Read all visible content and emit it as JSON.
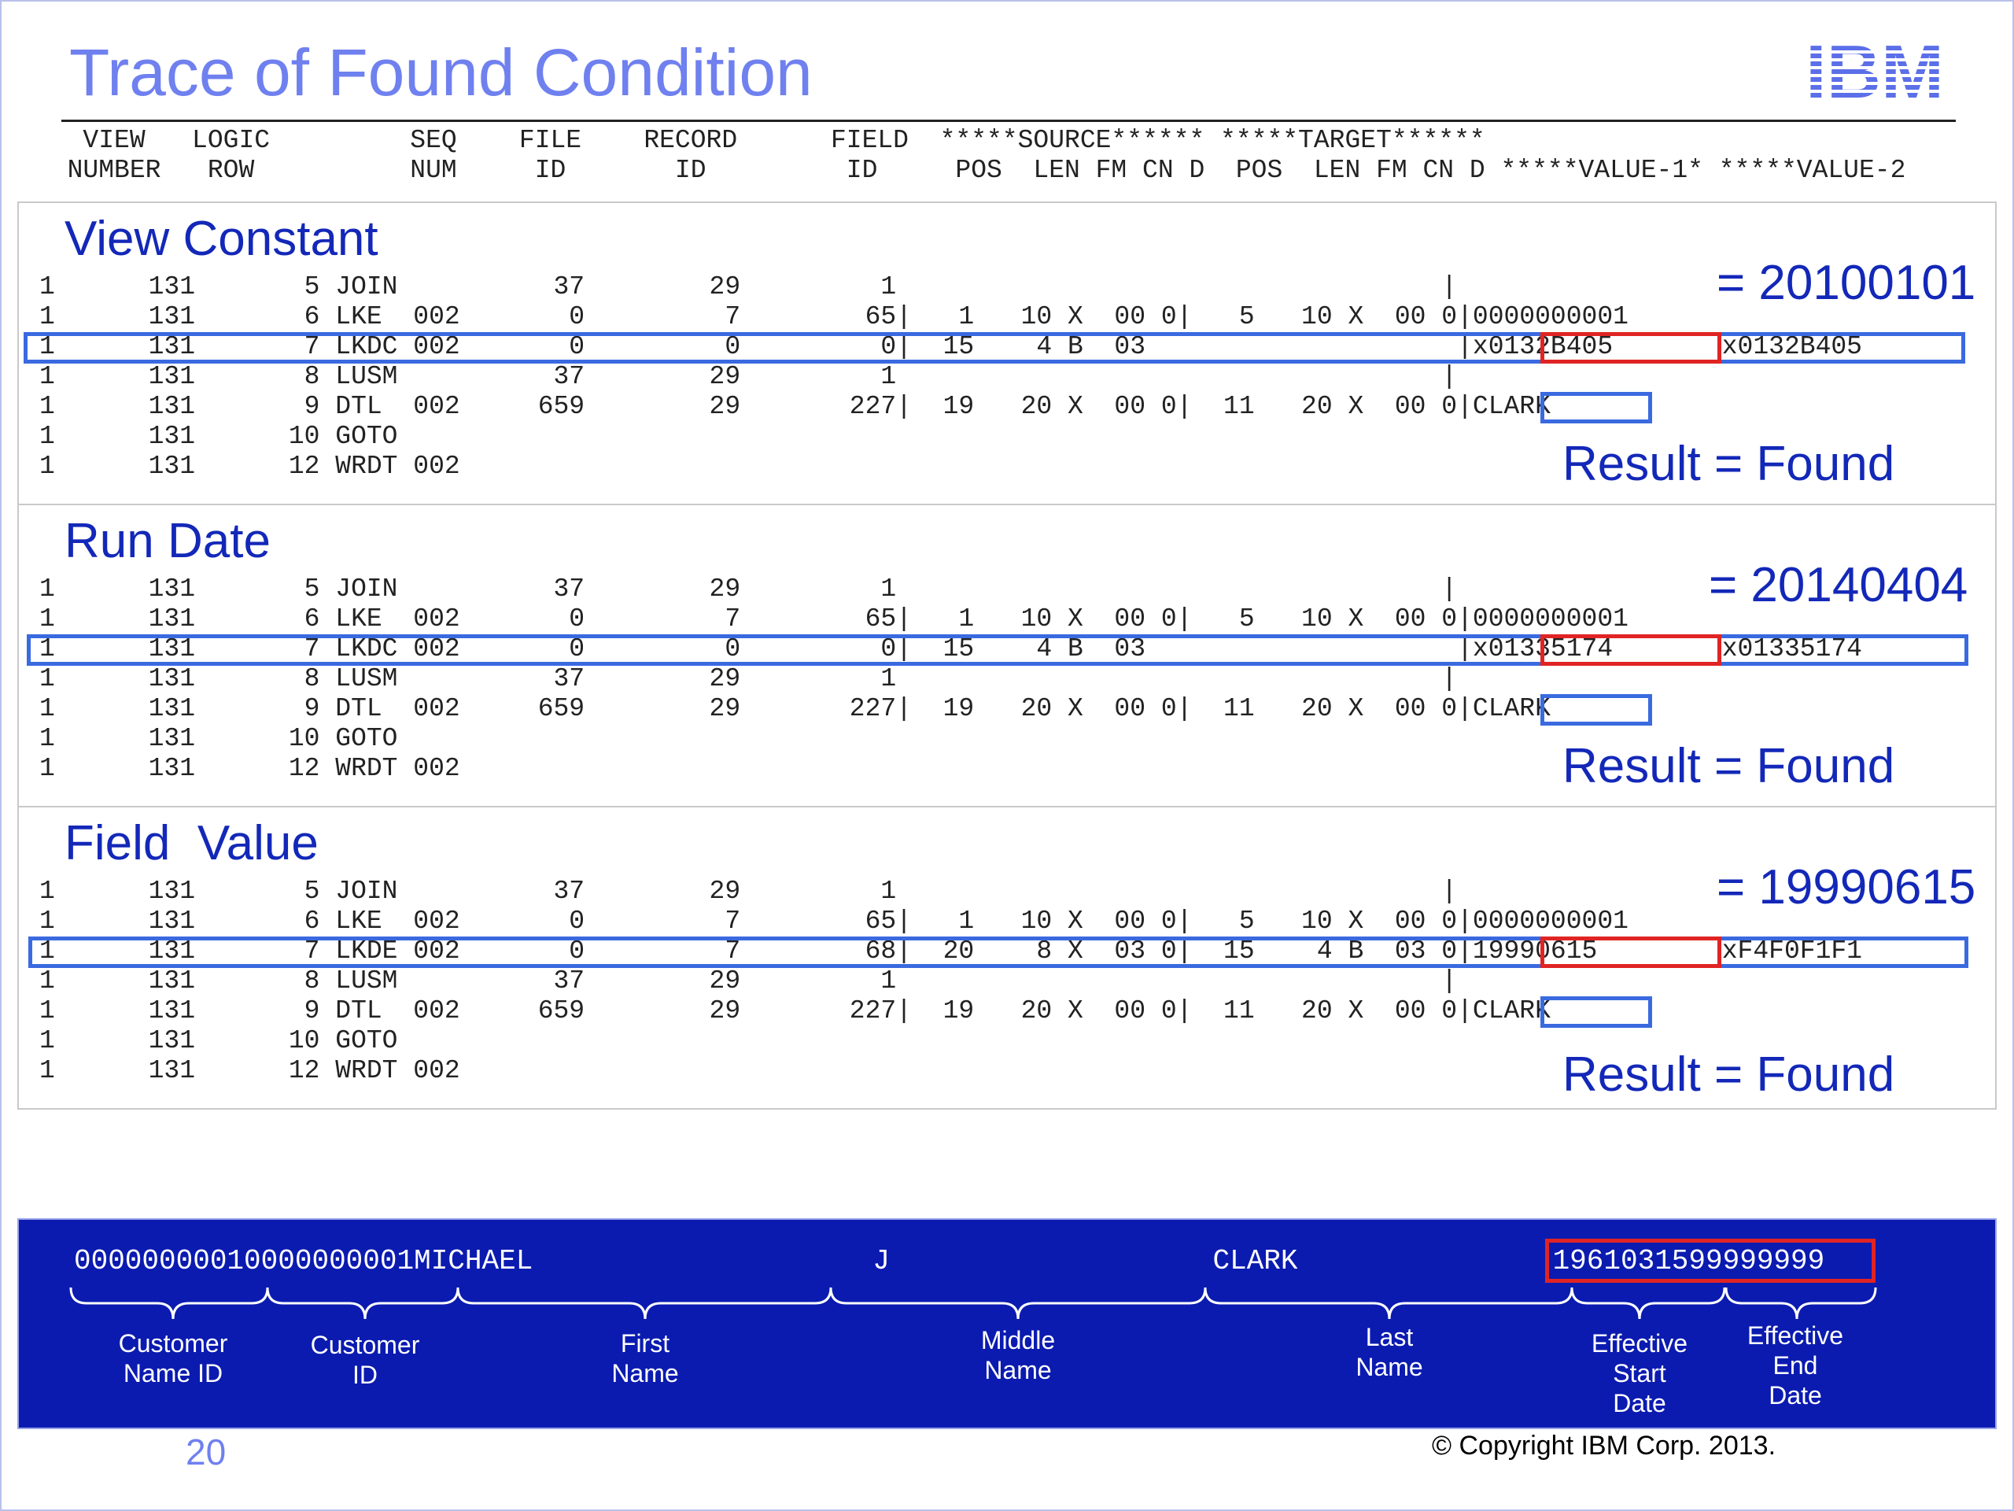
{
  "slide": {
    "title": "Trace of Found Condition",
    "logo_text": "IBM",
    "page_number": "20",
    "copyright": "© Copyright IBM Corp. 2013."
  },
  "header": {
    "line1": "   VIEW   LOGIC         SEQ    FILE    RECORD      FIELD  *****SOURCE****** *****TARGET******",
    "line2": "  NUMBER   ROW          NUM     ID       ID         ID     POS  LEN FM CN D  POS  LEN FM CN D *****VALUE-1* *****VALUE-2"
  },
  "panels": [
    {
      "title": "View Constant",
      "callout_value": "= 20100101",
      "result": "Result = Found",
      "rows": [
        "1      131       5 JOIN          37        29         1                                   |",
        "1      131       6 LKE  002       0         7        65|   1   10 X  00 0|   5   10 X  00 0|0000000001",
        "1      131       7 LKDC 002       0         0         0|  15    4 B  03                    |x0132B405       x0132B405",
        "1      131       8 LUSM          37        29         1                                   |",
        "1      131       9 DTL  002     659        29       227|  19   20 X  00 0|  11   20 X  00 0|CLARK",
        "1      131      10 GOTO",
        "1      131      12 WRDT 002"
      ]
    },
    {
      "title": "Run Date",
      "callout_value": "= 20140404",
      "result": "Result = Found",
      "rows": [
        "1      131       5 JOIN          37        29         1                                   |",
        "1      131       6 LKE  002       0         7        65|   1   10 X  00 0|   5   10 X  00 0|0000000001",
        "1      131       7 LKDC 002       0         0         0|  15    4 B  03                    |x01335174       x01335174",
        "1      131       8 LUSM          37        29         1                                   |",
        "1      131       9 DTL  002     659        29       227|  19   20 X  00 0|  11   20 X  00 0|CLARK",
        "1      131      10 GOTO",
        "1      131      12 WRDT 002"
      ]
    },
    {
      "title": "Field  Value",
      "callout_value": "= 19990615",
      "result": "Result = Found",
      "rows": [
        "1      131       5 JOIN          37        29         1                                   |",
        "1      131       6 LKE  002       0         7        65|   1   10 X  00 0|   5   10 X  00 0|0000000001",
        "1      131       7 LKDE 002       0         7        68|  20    8 X  03 0|  15    4 B  03 0|19990615        xF4F0F1F1",
        "1      131       8 LUSM          37        29         1                                   |",
        "1      131       9 DTL  002     659        29       227|  19   20 X  00 0|  11   20 X  00 0|CLARK",
        "1      131      10 GOTO",
        "1      131      12 WRDT 002"
      ]
    }
  ],
  "record": {
    "customer_name_id": "0000000001",
    "customer_id": "0000000001",
    "first_name": "MICHAEL",
    "middle_name": "J",
    "last_name": "CLARK",
    "effective_dates": "1961031599999999",
    "labels": {
      "customer_name_id": "Customer\nName ID",
      "customer_id": "Customer\nID",
      "first_name": "First\nName",
      "middle_name": "Middle\nName",
      "last_name": "Last\nName",
      "effective_start": "Effective\nStart\nDate",
      "effective_end": "Effective\nEnd\nDate"
    }
  },
  "colors": {
    "title": "#6f80ef",
    "heading": "#1328b8",
    "highlight_row": "#3a6ae0",
    "highlight_value": "#e02424",
    "record_bg": "#0b1bb0"
  }
}
